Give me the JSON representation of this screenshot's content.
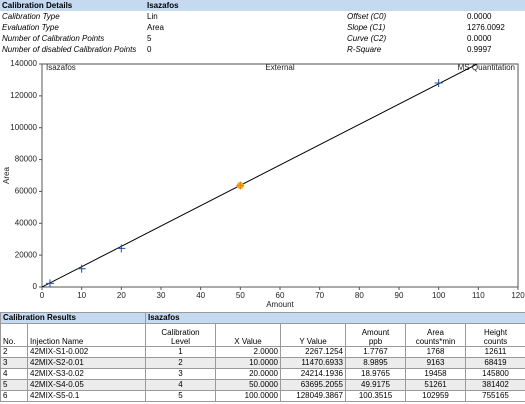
{
  "calibration_details": {
    "title": "Calibration Details",
    "compound": "Isazafos",
    "rows": [
      [
        "Calibration Type",
        "Lin",
        "Offset (C0)",
        "0.0000"
      ],
      [
        "Evaluation Type",
        "Area",
        "Slope (C1)",
        "1276.0092"
      ],
      [
        "Number of Calibration Points",
        "5",
        "Curve (C2)",
        "0.0000"
      ],
      [
        "Number of disabled Calibration Points",
        "0",
        "R-Square",
        "0.9997"
      ]
    ]
  },
  "chart_data": {
    "type": "scatter",
    "title": "Isazafos",
    "subtitle": "External",
    "annotation": "MS Quantitation",
    "x_label": "Amount",
    "y_label": "Area",
    "x": [
      2,
      10,
      20,
      50,
      100
    ],
    "values": [
      2267.1254,
      11470.6933,
      24214.1936,
      63695.2055,
      128049.3867
    ],
    "colors": [
      "#1f4fa8",
      "#1f4fa8",
      "#1f4fa8",
      "#f5a623",
      "#1f4fa8"
    ],
    "xlim": [
      0,
      120
    ],
    "xticks": [
      0,
      10,
      20,
      30,
      40,
      50,
      60,
      70,
      80,
      90,
      100,
      110,
      120
    ],
    "ylim": [
      0,
      140000
    ],
    "yticks": [
      0,
      20000,
      40000,
      60000,
      80000,
      100000,
      120000,
      140000
    ],
    "grid": false,
    "fit_line_color": "#000000"
  },
  "calibration_results": {
    "title": "Calibration Results",
    "compound": "Isazafos",
    "columns": [
      [
        "No."
      ],
      [
        "Injection Name"
      ],
      [
        "Calibration",
        "Level"
      ],
      [
        "X Value"
      ],
      [
        "Y Value"
      ],
      [
        "Amount",
        "ppb"
      ],
      [
        "Area",
        "counts*min"
      ],
      [
        "Height",
        "counts"
      ]
    ],
    "rows": [
      [
        "2",
        "42MIX-S1-0.002",
        "1",
        "2.0000",
        "2267.1254",
        "1.7767",
        "1768",
        "12611"
      ],
      [
        "3",
        "42MIX-S2-0.01",
        "2",
        "10.0000",
        "11470.6933",
        "8.9895",
        "9163",
        "68419"
      ],
      [
        "4",
        "42MIX-S3-0.02",
        "3",
        "20.0000",
        "24214.1936",
        "18.9765",
        "19458",
        "145800"
      ],
      [
        "5",
        "42MIX-S4-0.05",
        "4",
        "50.0000",
        "63695.2055",
        "49.9175",
        "51261",
        "381402"
      ],
      [
        "6",
        "42MIX-S5-0.1",
        "5",
        "100.0000",
        "128049.3867",
        "100.3515",
        "102959",
        "755165"
      ]
    ]
  }
}
